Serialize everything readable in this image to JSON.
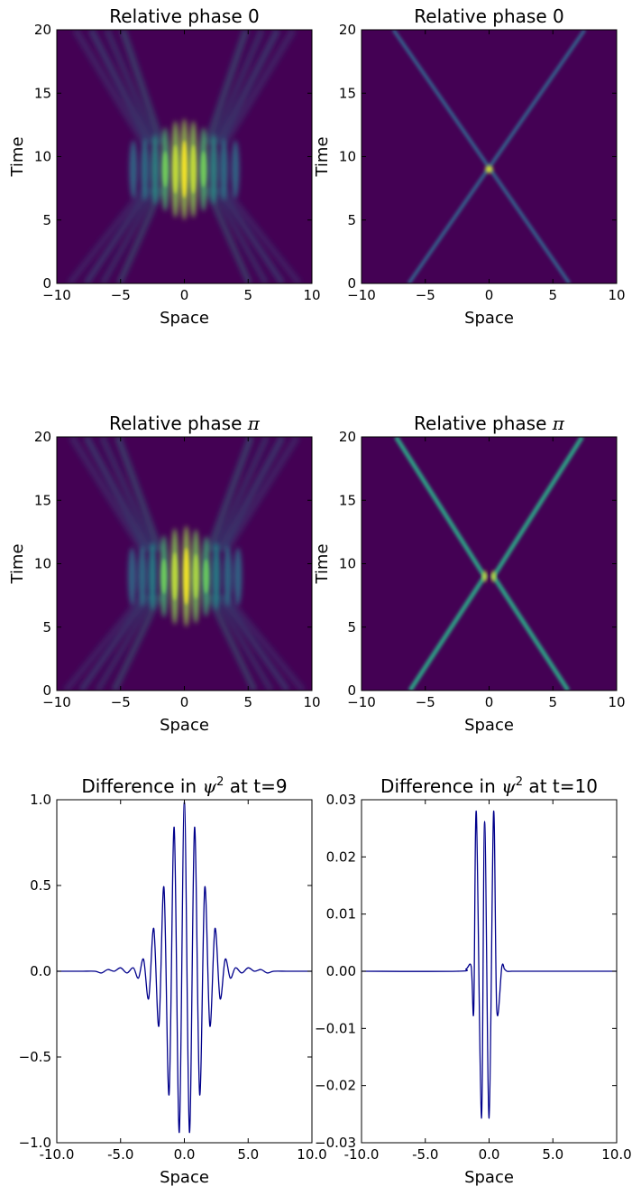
{
  "colors": {
    "background": "#440154",
    "line": "#00008b",
    "colormap": "viridis"
  },
  "chart_data": [
    {
      "type": "heatmap",
      "title": "Relative phase 0",
      "xlabel": "Space",
      "ylabel": "Time",
      "xlim": [
        -10,
        10
      ],
      "ylim": [
        0,
        20
      ],
      "xticks": [
        "−10",
        "−5",
        "0",
        "5",
        "10"
      ],
      "yticks": [
        "0",
        "5",
        "10",
        "15",
        "20"
      ],
      "pattern": "two broad interfering wave packets crossing near x=0, t≈9"
    },
    {
      "type": "heatmap",
      "title": "Relative phase 0",
      "xlabel": "Space",
      "ylabel": "Time",
      "xlim": [
        -10,
        10
      ],
      "ylim": [
        0,
        20
      ],
      "xticks": [
        "−10",
        "−5",
        "0",
        "5",
        "10"
      ],
      "yticks": [
        "0",
        "5",
        "10",
        "15",
        "20"
      ],
      "pattern": "two narrow solitons moving at ±0.7, crossing at x=0, t≈9"
    },
    {
      "type": "heatmap",
      "title_prefix": "Relative phase ",
      "title_symbol": "π",
      "xlabel": "Space",
      "ylabel": "Time",
      "xlim": [
        -10,
        10
      ],
      "ylim": [
        0,
        20
      ],
      "xticks": [
        "−10",
        "−5",
        "0",
        "5",
        "10"
      ],
      "yticks": [
        "0",
        "5",
        "10",
        "15",
        "20"
      ],
      "pattern": "two broad interfering wave packets crossing near x=0, t≈9"
    },
    {
      "type": "heatmap",
      "title_prefix": "Relative phase ",
      "title_symbol": "π",
      "xlabel": "Space",
      "ylabel": "Time",
      "xlim": [
        -10,
        10
      ],
      "ylim": [
        0,
        20
      ],
      "xticks": [
        "−10",
        "−5",
        "0",
        "5",
        "10"
      ],
      "yticks": [
        "0",
        "5",
        "10",
        "15",
        "20"
      ],
      "pattern": "two narrow solitons moving at ±0.7, repelling at x=0, t≈9"
    },
    {
      "type": "line",
      "title_prefix": "Difference in ",
      "title_symbol": "ψ",
      "title_sup": "2",
      "title_suffix": " at t=9",
      "xlabel": "Space",
      "xlim": [
        -10,
        10
      ],
      "ylim": [
        -1,
        1
      ],
      "xticks": [
        "-10.0",
        "-5.0",
        "0.0",
        "5.0",
        "10.0"
      ],
      "yticks": [
        "−1.0",
        "−0.5",
        "0.0",
        "0.5",
        "1.0"
      ],
      "series": [
        {
          "x": [
            -10,
            -9,
            -8,
            -7,
            -6.5,
            -6,
            -5.5,
            -5,
            -4.5,
            -4,
            -3.6,
            -3.2,
            -2.8,
            -2.4,
            -2.0,
            -1.6,
            -1.2,
            -0.8,
            -0.4,
            0,
            0.4,
            0.8,
            1.2,
            1.6,
            2.0,
            2.4,
            2.8,
            3.2,
            3.6,
            4,
            4.5,
            5,
            5.5,
            6,
            6.5,
            7,
            8,
            9,
            10
          ],
          "y": [
            0.0,
            0.0,
            0.0,
            0.0,
            -0.01,
            0.01,
            0.0,
            0.02,
            -0.01,
            0.02,
            -0.04,
            0.07,
            -0.16,
            0.25,
            -0.32,
            0.49,
            -0.72,
            0.84,
            -0.94,
            0.99,
            -0.94,
            0.84,
            -0.72,
            0.49,
            -0.32,
            0.25,
            -0.16,
            0.07,
            -0.04,
            0.02,
            -0.01,
            0.02,
            0.0,
            0.01,
            -0.01,
            0.0,
            0.0,
            0.0,
            0.0
          ]
        }
      ]
    },
    {
      "type": "line",
      "title_prefix": "Difference in ",
      "title_symbol": "ψ",
      "title_sup": "2",
      "title_suffix": " at t=10",
      "xlabel": "Space",
      "xlim": [
        -10,
        10
      ],
      "ylim": [
        -0.03,
        0.03
      ],
      "xticks": [
        "-10.0",
        "-5.0",
        "0.0",
        "5.0",
        "10.0"
      ],
      "yticks": [
        "−0.03",
        "−0.02",
        "−0.01",
        "0.00",
        "0.01",
        "0.02",
        "0.03"
      ],
      "series": [
        {
          "x": [
            -10,
            -2.5,
            -1.8,
            -1.4,
            -1.2,
            -1.0,
            -0.6,
            -0.35,
            0,
            0.35,
            0.6,
            1.0,
            1.2,
            1.4,
            1.8,
            2.5,
            10
          ],
          "y": [
            0.0,
            0.0,
            0.0004,
            0.0008,
            -0.0067,
            0.0278,
            -0.0257,
            0.0262,
            -0.0257,
            0.0278,
            -0.0067,
            0.0008,
            0.0004,
            0.0,
            0.0,
            0.0,
            0.0
          ]
        }
      ]
    }
  ]
}
